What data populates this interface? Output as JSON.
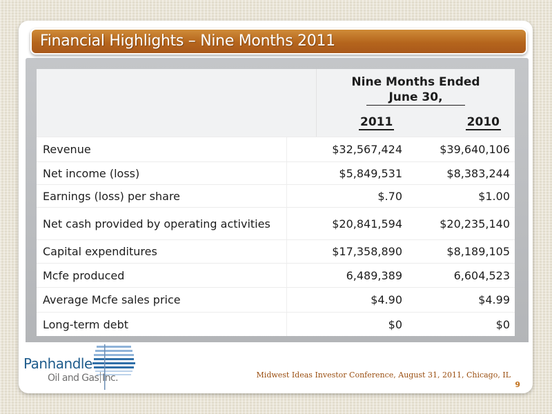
{
  "slide": {
    "title": "Financial Highlights – Nine Months 2011",
    "accent_color": "#b5651d"
  },
  "table": {
    "period_line1": "Nine Months Ended",
    "period_line2": "June 30,",
    "years": [
      "2011",
      "2010"
    ],
    "rows": [
      {
        "label": "Revenue",
        "v2011": "$32,567,424",
        "v2010": "$39,640,106"
      },
      {
        "label": "Net income (loss)",
        "v2011": "$5,849,531",
        "v2010": "$8,383,244"
      },
      {
        "label": "Earnings (loss) per share",
        "v2011": "$.70",
        "v2010": "$1.00"
      },
      {
        "label": "Net cash provided by operating activities",
        "v2011": "$20,841,594",
        "v2010": "$20,235,140"
      },
      {
        "label": "Capital expenditures",
        "v2011": "$17,358,890",
        "v2010": "$8,189,105"
      },
      {
        "label": "Mcfe produced",
        "v2011": "6,489,389",
        "v2010": "6,604,523"
      },
      {
        "label": "Average Mcfe sales price",
        "v2011": "$4.90",
        "v2010": "$4.99"
      },
      {
        "label": "Long-term debt",
        "v2011": "$0",
        "v2010": "$0"
      }
    ]
  },
  "logo": {
    "name": "Panhandle",
    "sub_part1": "Oil and Gas",
    "sub_part2": "Inc.",
    "icon": "waves-logo-icon"
  },
  "footer": {
    "text": "Midwest Ideas Investor Conference, August 31, 2011, Chicago, IL",
    "page_number": "9"
  }
}
